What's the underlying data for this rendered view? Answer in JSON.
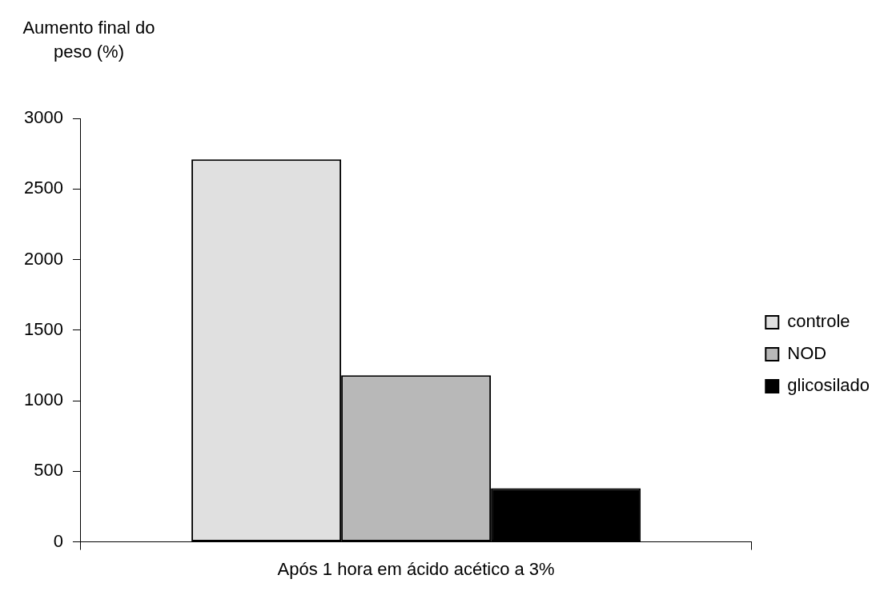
{
  "chart_data": {
    "type": "bar",
    "ylabel": "Aumento final do peso (%)",
    "categories": [
      "Após 1 hora em ácido acético a 3%"
    ],
    "series": [
      {
        "name": "controle",
        "color": "#e0e0e0",
        "values": [
          2710
        ]
      },
      {
        "name": "NOD",
        "color": "#b8b8b8",
        "values": [
          1180
        ]
      },
      {
        "name": "glicosilado",
        "color": "#000000",
        "values": [
          380
        ]
      }
    ],
    "ylim": [
      0,
      3000
    ],
    "yticks": [
      0,
      500,
      1000,
      1500,
      2000,
      2500,
      3000
    ],
    "grid": false,
    "legend": "right"
  }
}
